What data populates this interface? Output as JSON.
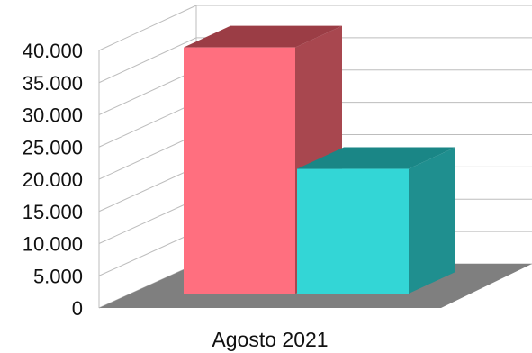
{
  "chart_data": {
    "type": "bar",
    "style": "3d",
    "categories": [
      "Agosto 2021"
    ],
    "series": [
      {
        "values": [
          38500
        ],
        "color": "#ff6f7f",
        "side_color": "#a8474f",
        "top_color": "#9b3d45"
      },
      {
        "values": [
          19500
        ],
        "color": "#33d6d6",
        "side_color": "#1f8f8f",
        "top_color": "#1a8686"
      }
    ],
    "ylim": [
      0,
      40000
    ],
    "ytick_values": [
      0,
      5000,
      10000,
      15000,
      20000,
      25000,
      30000,
      35000,
      40000
    ],
    "ytick_labels": [
      "0",
      "5.000",
      "10.000",
      "15.000",
      "20.000",
      "25.000",
      "30.000",
      "35.000",
      "40.000"
    ],
    "grid": true,
    "floor_color": "#7f7f7f",
    "grid_color": "#bdbdbd"
  }
}
